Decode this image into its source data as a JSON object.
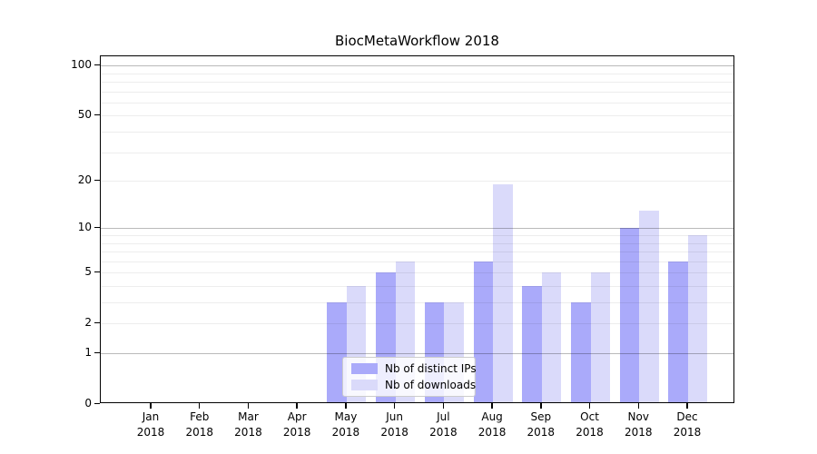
{
  "title": "BiocMetaWorkflow 2018",
  "legend": {
    "items": [
      {
        "label": "Nb of distinct IPs",
        "color": "#aaaafa"
      },
      {
        "label": "Nb of downloads",
        "color": "#dadafa"
      }
    ]
  },
  "chart_data": {
    "type": "bar",
    "title": "BiocMetaWorkflow 2018",
    "categories": [
      "Jan",
      "Feb",
      "Mar",
      "Apr",
      "May",
      "Jun",
      "Jul",
      "Aug",
      "Sep",
      "Oct",
      "Nov",
      "Dec"
    ],
    "x_year_label": "2018",
    "series": [
      {
        "name": "Nb of distinct IPs",
        "color": "#aaaafa",
        "values": [
          0,
          0,
          0,
          0,
          3,
          5,
          3,
          6,
          4,
          3,
          10,
          6
        ]
      },
      {
        "name": "Nb of downloads",
        "color": "#dadafa",
        "values": [
          0,
          0,
          0,
          0,
          4,
          6,
          3,
          19,
          5,
          5,
          13,
          9
        ]
      }
    ],
    "yscale": "log1p",
    "ylim": [
      0,
      110
    ],
    "yticks": [
      0,
      1,
      2,
      5,
      10,
      20,
      50,
      100
    ],
    "major_gridlines": [
      1,
      10,
      100
    ],
    "minor_gridlines": [
      2,
      3,
      4,
      5,
      6,
      7,
      8,
      9,
      20,
      30,
      40,
      50,
      60,
      70,
      80,
      90
    ],
    "grid": true,
    "legend_position": "lower-center-inside"
  }
}
